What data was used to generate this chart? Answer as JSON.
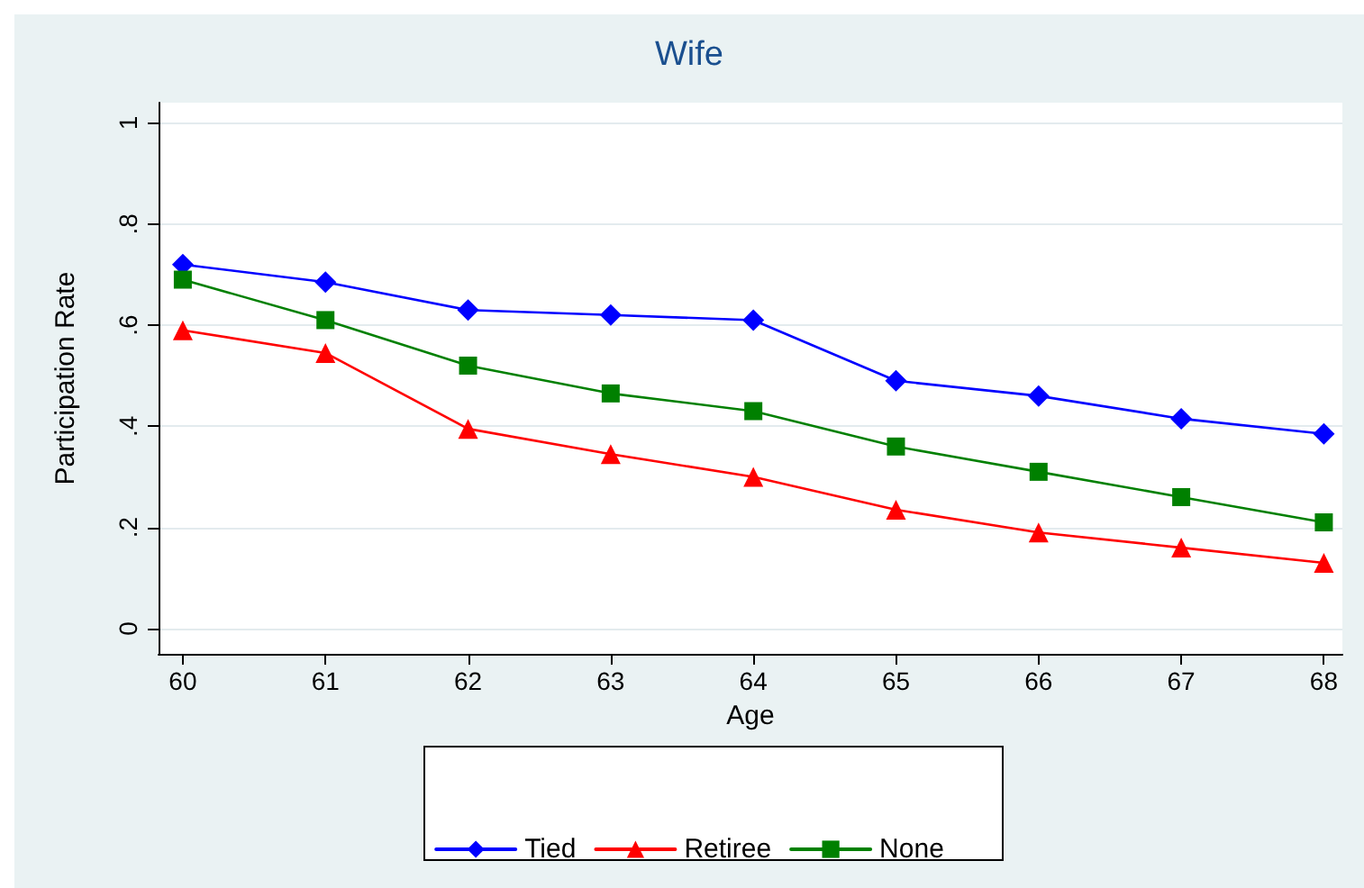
{
  "chart_data": {
    "type": "line",
    "title": "Wife",
    "xlabel": "Age",
    "ylabel": "Participation Rate",
    "x": [
      60,
      61,
      62,
      63,
      64,
      65,
      66,
      67,
      68
    ],
    "series": [
      {
        "name": "Tied",
        "color": "#0000ff",
        "marker": "diamond",
        "values": [
          0.72,
          0.685,
          0.63,
          0.62,
          0.61,
          0.49,
          0.46,
          0.415,
          0.385
        ]
      },
      {
        "name": "Retiree",
        "color": "#ff0000",
        "marker": "triangle",
        "values": [
          0.59,
          0.545,
          0.395,
          0.345,
          0.3,
          0.235,
          0.19,
          0.16,
          0.13
        ]
      },
      {
        "name": "None",
        "color": "#008000",
        "marker": "square",
        "values": [
          0.69,
          0.61,
          0.52,
          0.465,
          0.43,
          0.36,
          0.31,
          0.26,
          0.21
        ]
      }
    ],
    "xlim": [
      59.83,
      68.13
    ],
    "xticks": [
      60,
      61,
      62,
      63,
      64,
      65,
      66,
      67,
      68
    ],
    "ylim": [
      -0.05,
      1.04
    ],
    "yticks": [
      {
        "value": 0,
        "label": "0"
      },
      {
        "value": 0.2,
        "label": ".2"
      },
      {
        "value": 0.4,
        "label": ".4"
      },
      {
        "value": 0.6,
        "label": ".6"
      },
      {
        "value": 0.8,
        "label": ".8"
      },
      {
        "value": 1,
        "label": "1"
      }
    ],
    "grid": "y",
    "legend": "bottom",
    "line_style": "solid"
  }
}
